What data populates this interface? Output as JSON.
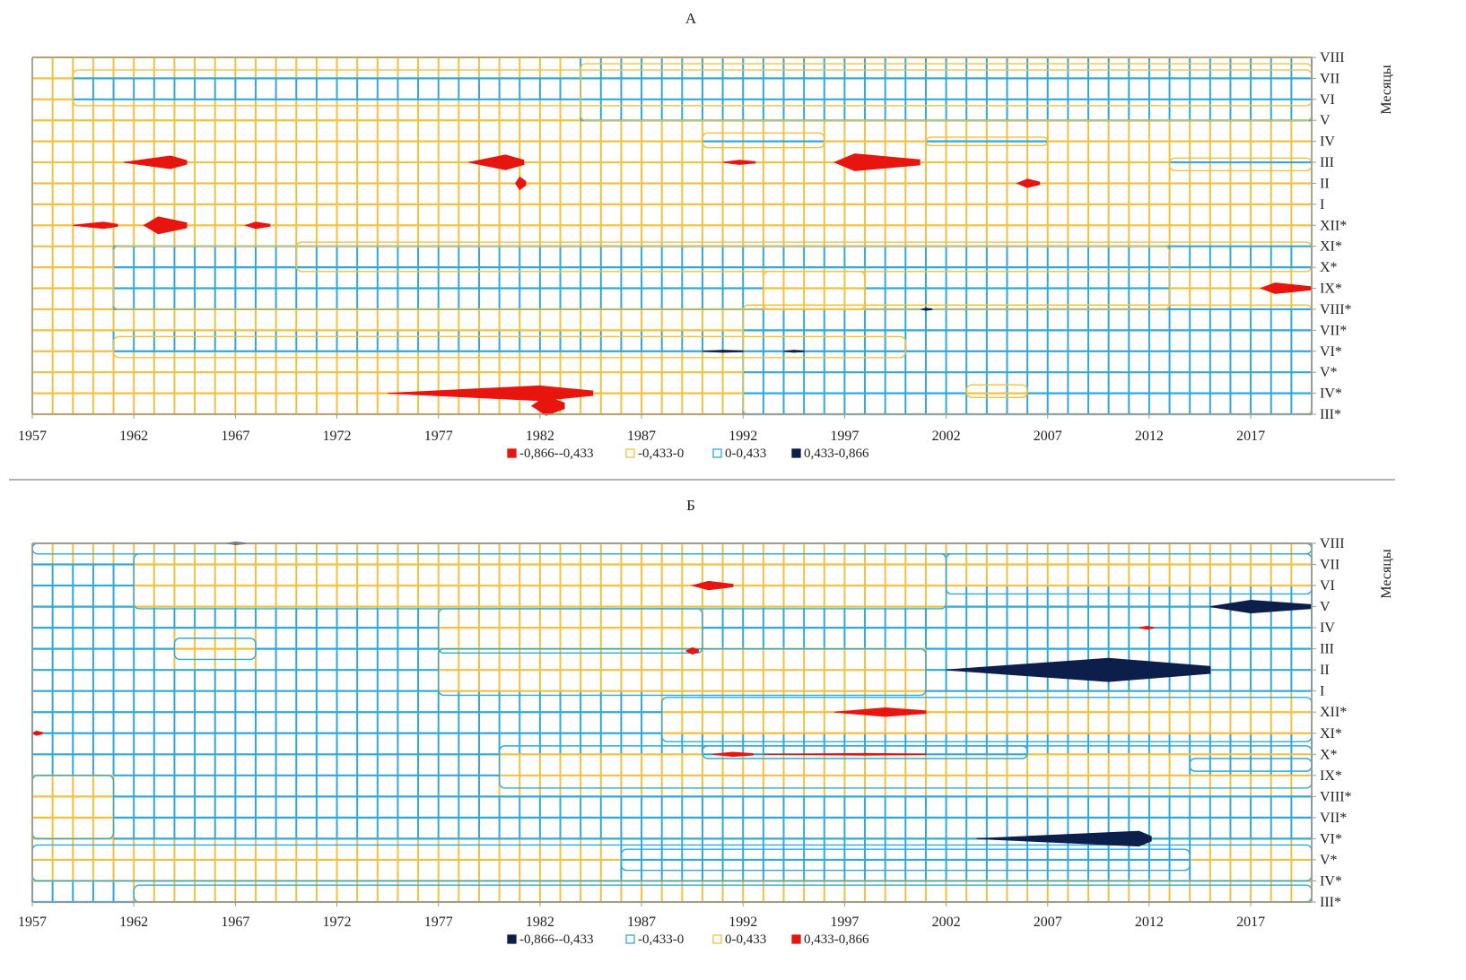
{
  "chart_data": [
    {
      "type": "heatmap",
      "title": "А",
      "xlim": [
        1957,
        2020
      ],
      "x_ticks": [
        "1957",
        "1962",
        "1967",
        "1972",
        "1977",
        "1982",
        "1987",
        "1992",
        "1997",
        "2002",
        "2007",
        "2012",
        "2017"
      ],
      "y_labels": [
        "VIII",
        "VII",
        "VI",
        "V",
        "IV",
        "III",
        "II",
        "I",
        "XII*",
        "XI*",
        "X*",
        "IX*",
        "VIII*",
        "VII*",
        "VI*",
        "V*",
        "IV*",
        "III*"
      ],
      "ylabel": "Месяцы",
      "legend": [
        {
          "label": "-0,866--0,433",
          "color": "#e8140e",
          "style": "filled"
        },
        {
          "label": "-0,433-0",
          "color": "#f2c13f",
          "style": "outline"
        },
        {
          "label": "0-0,433",
          "color": "#2fa9d9",
          "style": "outline"
        },
        {
          "label": "0,433-0,866",
          "color": "#0c1f4b",
          "style": "filled"
        }
      ],
      "contour_color": "#f2c13f",
      "default_range": 1,
      "zones": [
        {
          "range": 2,
          "years": [
            1959,
            2020
          ],
          "rows": [
            0.6,
            2.3
          ]
        },
        {
          "range": 2,
          "years": [
            1984,
            2020
          ],
          "rows": [
            0.3,
            3.0
          ]
        },
        {
          "range": 2,
          "years": [
            1990,
            1996
          ],
          "rows": [
            3.6,
            4.3
          ]
        },
        {
          "range": 2,
          "years": [
            2001,
            2007
          ],
          "rows": [
            3.8,
            4.2
          ]
        },
        {
          "range": 2,
          "years": [
            2013,
            2020
          ],
          "rows": [
            4.8,
            5.4
          ]
        },
        {
          "range": 2,
          "years": [
            1961,
            2013
          ],
          "rows": [
            9.0,
            12.0
          ]
        },
        {
          "range": 2,
          "years": [
            1970,
            2020
          ],
          "rows": [
            8.8,
            10.2
          ]
        },
        {
          "range": 2,
          "years": [
            1961,
            2000
          ],
          "rows": [
            13.3,
            14.3
          ]
        },
        {
          "range": 2,
          "years": [
            1992,
            2020
          ],
          "rows": [
            11.8,
            17.0
          ]
        },
        {
          "range": 1,
          "years": [
            1993,
            1998
          ],
          "rows": [
            10.2,
            12.0
          ]
        },
        {
          "range": 1,
          "years": [
            2003,
            2006
          ],
          "rows": [
            15.6,
            16.2
          ]
        }
      ],
      "extremes": [
        {
          "range": 0,
          "years": [
            1961.5,
            1963.8,
            1964.6
          ],
          "row": 5,
          "spread": 0.3
        },
        {
          "range": 0,
          "years": [
            1978.5,
            1980.3,
            1981.2
          ],
          "row": 5,
          "spread": 0.35
        },
        {
          "range": 0,
          "years": [
            1991.0,
            1991.8,
            1992.6
          ],
          "row": 5,
          "spread": 0.1
        },
        {
          "range": 0,
          "years": [
            1996.5,
            1997.5,
            2000.7
          ],
          "row": 5,
          "spread": 0.4
        },
        {
          "range": 0,
          "years": [
            1980.8,
            1981.0,
            1981.3
          ],
          "row": 6,
          "spread": 0.3
        },
        {
          "range": 0,
          "years": [
            2005.5,
            2006.0,
            2006.6
          ],
          "row": 6,
          "spread": 0.2
        },
        {
          "range": 0,
          "years": [
            1959.0,
            1960.5,
            1961.2
          ],
          "row": 8,
          "spread": 0.15
        },
        {
          "range": 0,
          "years": [
            1962.5,
            1963.2,
            1964.6
          ],
          "row": 8,
          "spread": 0.4
        },
        {
          "range": 0,
          "years": [
            1967.5,
            1968.0,
            1968.7
          ],
          "row": 8,
          "spread": 0.15
        },
        {
          "range": 0,
          "years": [
            2017.5,
            2018.2,
            2020.0
          ],
          "row": 11,
          "spread": 0.25
        },
        {
          "range": 0,
          "years": [
            1974.5,
            1982.0,
            1984.6
          ],
          "row": 16,
          "spread": 0.35
        },
        {
          "range": 0,
          "years": [
            1981.6,
            1982.3,
            1983.2
          ],
          "row": 16.6,
          "spread": 0.45
        },
        {
          "range": 3,
          "years": [
            1990.0,
            1991.0,
            1992.0
          ],
          "row": 14,
          "spread": 0.05
        },
        {
          "range": 3,
          "years": [
            1994.0,
            1994.5,
            1995.0
          ],
          "row": 14,
          "spread": 0.05
        },
        {
          "range": 3,
          "years": [
            2000.8,
            2001.0,
            2001.3
          ],
          "row": 12,
          "spread": 0.05
        }
      ]
    },
    {
      "type": "heatmap",
      "title": "Б",
      "xlim": [
        1957,
        2020
      ],
      "x_ticks": [
        "1957",
        "1962",
        "1967",
        "1972",
        "1977",
        "1982",
        "1987",
        "1992",
        "1997",
        "2002",
        "2007",
        "2012",
        "2017"
      ],
      "y_labels": [
        "VIII",
        "VII",
        "VI",
        "V",
        "IV",
        "III",
        "II",
        "I",
        "XII*",
        "XI*",
        "X*",
        "IX*",
        "VIII*",
        "VII*",
        "VI*",
        "V*",
        "IV*",
        "III*"
      ],
      "ylabel": "Месяцы",
      "legend": [
        {
          "label": "-0,866--0,433",
          "color": "#0c1f4b",
          "style": "filled"
        },
        {
          "label": "-0,433-0",
          "color": "#2fa9d9",
          "style": "outline"
        },
        {
          "label": "0-0,433",
          "color": "#f2c13f",
          "style": "outline"
        },
        {
          "label": "0,433-0,866",
          "color": "#e8140e",
          "style": "filled"
        }
      ],
      "contour_color": "#2fa9d9",
      "default_range": 1,
      "zones": [
        {
          "range": 2,
          "years": [
            1957,
            2020
          ],
          "rows": [
            0,
            0.5
          ]
        },
        {
          "range": 2,
          "years": [
            1962,
            2002
          ],
          "rows": [
            0.5,
            3.1
          ]
        },
        {
          "range": 2,
          "years": [
            2002,
            2020
          ],
          "rows": [
            0.5,
            2.4
          ]
        },
        {
          "range": 2,
          "years": [
            1977,
            1990
          ],
          "rows": [
            3.1,
            5.2
          ]
        },
        {
          "range": 2,
          "years": [
            1977,
            2001
          ],
          "rows": [
            5.0,
            7.2
          ]
        },
        {
          "range": 2,
          "years": [
            1964,
            1968
          ],
          "rows": [
            4.5,
            5.5
          ]
        },
        {
          "range": 2,
          "years": [
            1988,
            2020
          ],
          "rows": [
            7.3,
            9.4
          ]
        },
        {
          "range": 2,
          "years": [
            1980,
            2020
          ],
          "rows": [
            9.6,
            11.6
          ]
        },
        {
          "range": 2,
          "years": [
            1957,
            1961
          ],
          "rows": [
            11.0,
            14.0
          ]
        },
        {
          "range": 2,
          "years": [
            1957,
            2020
          ],
          "rows": [
            14.3,
            16.0
          ]
        },
        {
          "range": 2,
          "years": [
            1962,
            2020
          ],
          "rows": [
            16.2,
            17.0
          ]
        },
        {
          "range": 1,
          "years": [
            1990,
            2006
          ],
          "rows": [
            9.6,
            10.2
          ]
        },
        {
          "range": 1,
          "years": [
            2014,
            2020
          ],
          "rows": [
            10.2,
            10.8
          ]
        },
        {
          "range": 1,
          "years": [
            1986,
            2014
          ],
          "rows": [
            14.5,
            15.5
          ]
        }
      ],
      "extremes": [
        {
          "range": 3,
          "years": [
            1989.5,
            1990.3,
            1991.5
          ],
          "row": 2,
          "spread": 0.2
        },
        {
          "range": 3,
          "years": [
            1989.2,
            1989.5,
            1989.8
          ],
          "row": 5.1,
          "spread": 0.15
        },
        {
          "range": 3,
          "years": [
            1996.5,
            1999.0,
            2001.0
          ],
          "row": 8,
          "spread": 0.2
        },
        {
          "range": 3,
          "years": [
            1990.5,
            1991.5,
            1992.5
          ],
          "row": 10,
          "spread": 0.1
        },
        {
          "range": 3,
          "years": [
            1993.0,
            1998.0,
            2001.0
          ],
          "row": 10,
          "spread": 0.04
        },
        {
          "range": 3,
          "years": [
            1957.0,
            1957.2,
            1957.5
          ],
          "row": 9,
          "spread": 0.1
        },
        {
          "range": 3,
          "years": [
            2011.5,
            2011.9,
            2012.2
          ],
          "row": 4,
          "spread": 0.07
        },
        {
          "range": 0,
          "years": [
            2015.0,
            2017.0,
            2020.0
          ],
          "row": 3,
          "spread": 0.3
        },
        {
          "range": 0,
          "years": [
            2002.0,
            2010.0,
            2015.0
          ],
          "row": 6,
          "spread": 0.55
        },
        {
          "range": 0,
          "years": [
            2003.5,
            2011.5,
            2012.1
          ],
          "row": 14,
          "spread": 0.35
        },
        {
          "range": 0,
          "years": [
            1966.5,
            1967.0,
            1967.5
          ],
          "row": 0,
          "spread": 0.05
        }
      ]
    }
  ]
}
